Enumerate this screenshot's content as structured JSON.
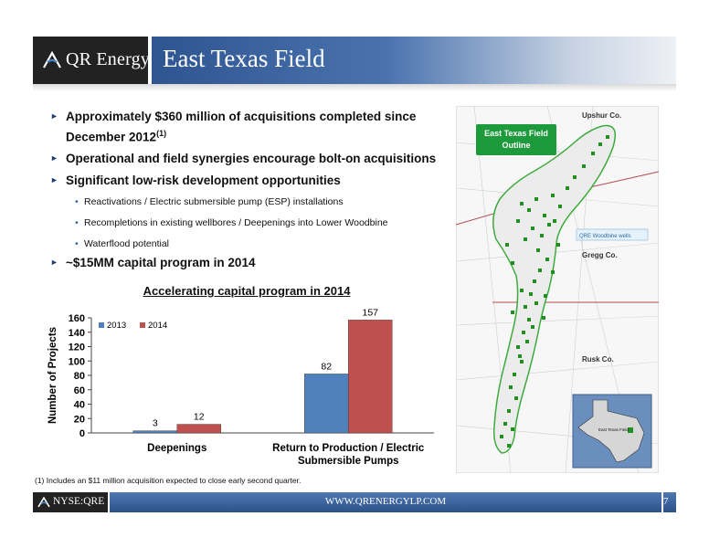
{
  "header": {
    "logo_text": "QR Energy",
    "title": "East Texas Field"
  },
  "bullets": [
    {
      "text": "Approximately $360 million of acquisitions completed since December 2012",
      "sup": "(1)"
    },
    {
      "text": "Operational and field synergies encourage bolt-on acquisitions"
    },
    {
      "text": "Significant low-risk development opportunities"
    },
    {
      "text": "~$15MM capital program in 2014"
    }
  ],
  "sub_bullets": [
    "Reactivations / Electric submersible pump (ESP) installations",
    "Recompletions in existing wellbores / Deepenings into Lower Woodbine",
    "Waterflood potential"
  ],
  "chart_data": {
    "type": "bar",
    "title": "Accelerating capital program in 2014",
    "ylabel": "Number of Projects",
    "xlabel": "",
    "categories": [
      "Deepenings",
      "Return to Production / Electric Submersible Pumps"
    ],
    "category_lines": [
      [
        "Deepenings"
      ],
      [
        "Return to Production / Electric",
        "Submersible Pumps"
      ]
    ],
    "series": [
      {
        "name": "2013",
        "values": [
          3,
          82
        ],
        "color": "#4f81bd"
      },
      {
        "name": "2014",
        "values": [
          12,
          157
        ],
        "color": "#c0504d"
      }
    ],
    "ylim": [
      0,
      160
    ],
    "yticks": [
      0,
      20,
      40,
      60,
      80,
      100,
      120,
      140,
      160
    ],
    "legend_position": "top-left",
    "grid": false
  },
  "map": {
    "callout": "East Texas Field Outline",
    "county_upshur": "Upshur Co.",
    "county_gregg": "Gregg Co.",
    "county_rusk": "Rusk Co.",
    "wells_label": "QRE Woodbine wells",
    "inset_label": "East Texas Field",
    "colors": {
      "outline": "#3cab3c",
      "wells": "#1f8f1f",
      "callout_bg": "#1c9a3c",
      "county_line": "#b04848"
    }
  },
  "footnote": "(1) Includes an $11 million acquisition expected to close early second quarter.",
  "footer": {
    "logo_text": "NYSE:QRE",
    "url": "WWW.QRENERGYLP.COM",
    "page_number": "7"
  },
  "colors": {
    "title_bar": "#2f5591",
    "logo_bg": "#222222",
    "bullet_marker": "#1f3e70"
  }
}
